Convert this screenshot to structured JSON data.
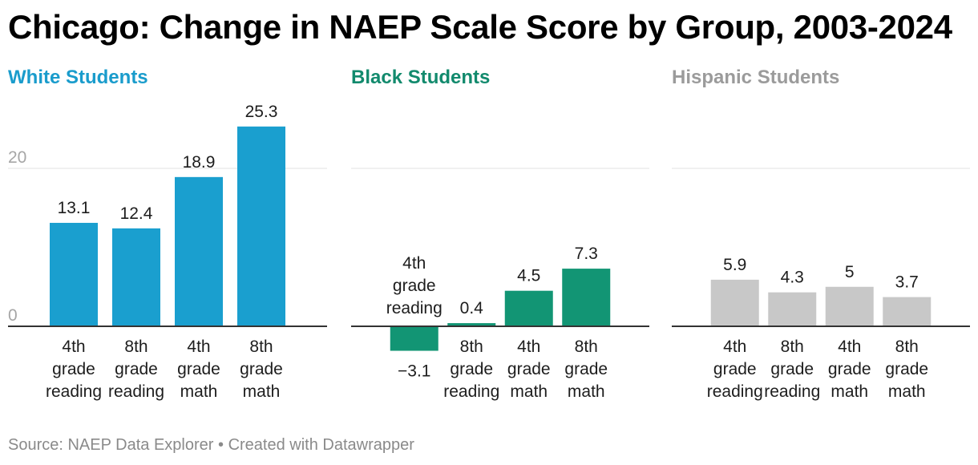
{
  "title": "Chicago: Change in NAEP Scale Score by Group, 2003-2024",
  "footer": {
    "source": "Source: NAEP Data Explorer",
    "separator": "•",
    "credit": "Created with Datawrapper"
  },
  "chart_data": [
    {
      "type": "bar",
      "title": "White Students",
      "title_color": "#1a9ccc",
      "bar_color": "#1a9fcf",
      "categories": [
        [
          "4th",
          "grade",
          "reading"
        ],
        [
          "8th",
          "grade",
          "reading"
        ],
        [
          "4th",
          "grade",
          "math"
        ],
        [
          "8th",
          "grade",
          "math"
        ]
      ],
      "values": [
        13.1,
        12.4,
        18.9,
        25.3
      ],
      "value_labels": [
        "13.1",
        "12.4",
        "18.9",
        "25.3"
      ],
      "y_ticks": [
        "0",
        "20"
      ],
      "ylim": [
        -4,
        28
      ],
      "grid": true
    },
    {
      "type": "bar",
      "title": "Black Students",
      "title_color": "#128a6d",
      "bar_color": "#129574",
      "categories": [
        [
          "4th",
          "grade",
          "reading"
        ],
        [
          "8th",
          "grade",
          "reading"
        ],
        [
          "4th",
          "grade",
          "math"
        ],
        [
          "8th",
          "grade",
          "math"
        ]
      ],
      "values": [
        -3.1,
        0.4,
        4.5,
        7.3
      ],
      "value_labels": [
        "−3.1",
        "0.4",
        "4.5",
        "7.3"
      ],
      "y_ticks": [],
      "ylim": [
        -4,
        28
      ],
      "grid": true
    },
    {
      "type": "bar",
      "title": "Hispanic Students",
      "title_color": "#9b9b9b",
      "bar_color": "#c8c8c8",
      "categories": [
        [
          "4th",
          "grade",
          "reading"
        ],
        [
          "8th",
          "grade",
          "reading"
        ],
        [
          "4th",
          "grade",
          "math"
        ],
        [
          "8th",
          "grade",
          "math"
        ]
      ],
      "values": [
        5.9,
        4.3,
        5,
        3.7
      ],
      "value_labels": [
        "5.9",
        "4.3",
        "5",
        "3.7"
      ],
      "y_ticks": [],
      "ylim": [
        -4,
        28
      ],
      "grid": true
    }
  ]
}
